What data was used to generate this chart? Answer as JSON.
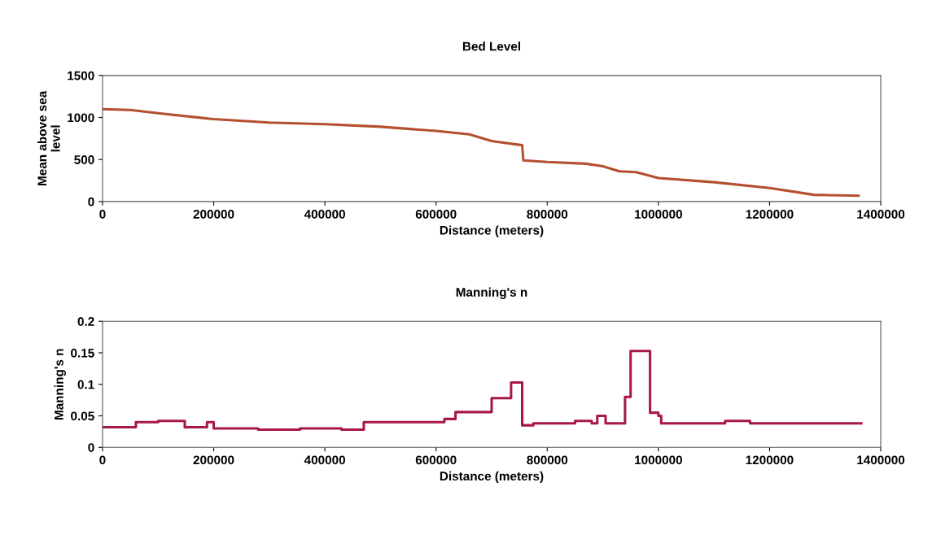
{
  "chart_data": [
    {
      "type": "line",
      "title": "Bed Level",
      "xlabel": "Distance (meters)",
      "ylabel": "Mean above sea\nlevel",
      "x": [
        0,
        50000,
        100000,
        200000,
        300000,
        400000,
        500000,
        600000,
        660000,
        700000,
        755000,
        757000,
        800000,
        870000,
        900000,
        930000,
        960000,
        1000000,
        1100000,
        1200000,
        1280000,
        1360000
      ],
      "series": [
        {
          "color": "#b4502e",
          "values": [
            1100,
            1090,
            1050,
            980,
            940,
            920,
            890,
            840,
            800,
            720,
            670,
            490,
            470,
            450,
            420,
            360,
            350,
            280,
            230,
            160,
            80,
            70
          ]
        }
      ],
      "xlim": [
        0,
        1400000
      ],
      "xticks": [
        0,
        200000,
        400000,
        600000,
        800000,
        1000000,
        1200000,
        1400000
      ],
      "ylim": [
        0,
        1500
      ],
      "yticks": [
        0,
        500,
        1000,
        1500
      ],
      "grid": false,
      "legend": false
    },
    {
      "type": "step",
      "title": "Manning's n",
      "xlabel": "Distance (meters)",
      "ylabel": "Manning's n",
      "x": [
        0,
        60000,
        100000,
        148000,
        188000,
        200000,
        280000,
        355000,
        430000,
        470000,
        615000,
        635000,
        700000,
        735000,
        755000,
        775000,
        850000,
        880000,
        890000,
        905000,
        940000,
        950000,
        985000,
        1000000,
        1005000,
        1120000,
        1165000,
        1365000
      ],
      "series": [
        {
          "color": "#a8174a",
          "values": [
            0.032,
            0.04,
            0.042,
            0.032,
            0.04,
            0.03,
            0.028,
            0.03,
            0.028,
            0.04,
            0.045,
            0.056,
            0.078,
            0.103,
            0.035,
            0.038,
            0.042,
            0.038,
            0.05,
            0.038,
            0.08,
            0.153,
            0.055,
            0.05,
            0.038,
            0.042,
            0.038,
            0.038
          ]
        }
      ],
      "xlim": [
        0,
        1400000
      ],
      "xticks": [
        0,
        200000,
        400000,
        600000,
        800000,
        1000000,
        1200000,
        1400000
      ],
      "ylim": [
        0,
        0.2
      ],
      "yticks": [
        0,
        0.05,
        0.1,
        0.15,
        0.2
      ],
      "grid": false,
      "legend": false
    }
  ]
}
